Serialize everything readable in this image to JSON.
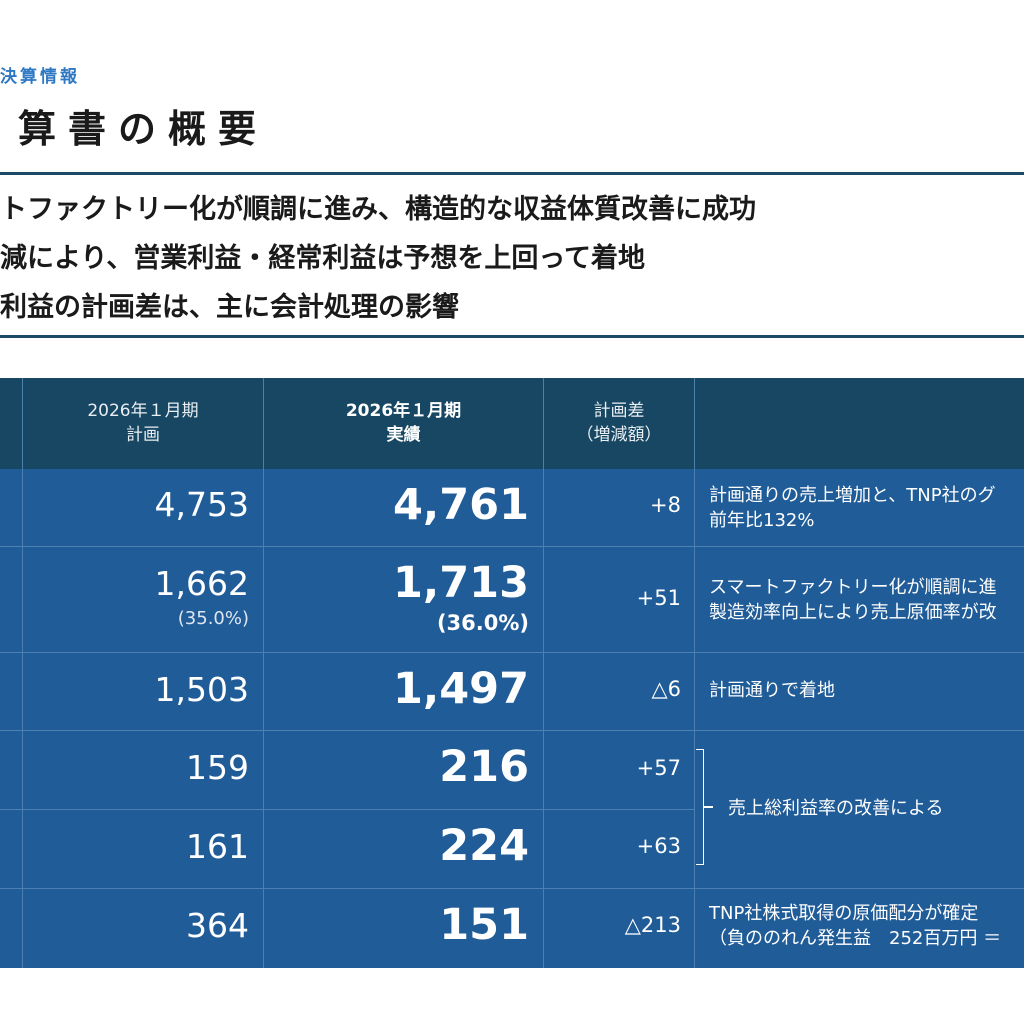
{
  "section_label": "決算情報",
  "page_title": "算書の概要",
  "summary": [
    "トファクトリー化が順調に進み、構造的な収益体質改善に成功",
    "減により、営業利益・経常利益は予想を上回って着地",
    "利益の計画差は、主に会計処理の影響"
  ],
  "table": {
    "headers": {
      "plan": [
        "2026年１月期",
        "計画"
      ],
      "actual": [
        "2026年１月期",
        "実績"
      ],
      "diff": [
        "計画差",
        "（増減額）"
      ]
    },
    "rows": [
      {
        "plan": "4,753",
        "plan_sub": "",
        "actual": "4,761",
        "actual_sub": "",
        "diff": "+8",
        "note": [
          "計画通りの売上増加と、TNP社のグ",
          "前年比132%"
        ]
      },
      {
        "plan": "1,662",
        "plan_sub": "(35.0%)",
        "actual": "1,713",
        "actual_sub": "(36.0%)",
        "diff": "+51",
        "note": [
          "スマートファクトリー化が順調に進",
          "製造効率向上により売上原価率が改"
        ]
      },
      {
        "plan": "1,503",
        "plan_sub": "",
        "actual": "1,497",
        "actual_sub": "",
        "diff": "△6",
        "note": [
          "計画通りで着地"
        ]
      },
      {
        "plan": "159",
        "plan_sub": "",
        "actual": "216",
        "actual_sub": "",
        "diff": "+57",
        "note": []
      },
      {
        "plan": "161",
        "plan_sub": "",
        "actual": "224",
        "actual_sub": "",
        "diff": "+63",
        "note": []
      },
      {
        "plan": "364",
        "plan_sub": "",
        "actual": "151",
        "actual_sub": "",
        "diff": "△213",
        "note": [
          "TNP社株式取得の原価配分が確定",
          "（負ののれん発生益　252百万円 ＝"
        ]
      }
    ],
    "grouped_note": "売上総利益率の改善による"
  }
}
